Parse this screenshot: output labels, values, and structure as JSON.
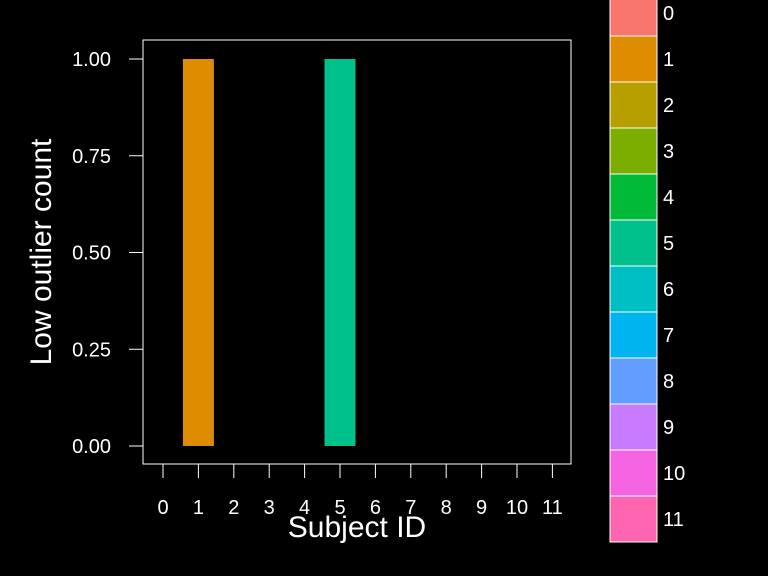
{
  "chart_data": {
    "type": "bar",
    "xlabel": "Subject ID",
    "ylabel": "Low outlier count",
    "categories": [
      "0",
      "1",
      "2",
      "3",
      "4",
      "5",
      "6",
      "7",
      "8",
      "9",
      "10",
      "11"
    ],
    "values": [
      0,
      1,
      0,
      0,
      0,
      1,
      0,
      0,
      0,
      0,
      0,
      0
    ],
    "ylim": [
      0,
      1
    ],
    "y_ticks": [
      "0.00",
      "0.25",
      "0.50",
      "0.75",
      "1.00"
    ],
    "grid": false,
    "legend_position": "right",
    "legend": [
      {
        "label": "0",
        "color": "#F8766D"
      },
      {
        "label": "1",
        "color": "#DE8C00"
      },
      {
        "label": "2",
        "color": "#B79F00"
      },
      {
        "label": "3",
        "color": "#7CAE00"
      },
      {
        "label": "4",
        "color": "#00BA38"
      },
      {
        "label": "5",
        "color": "#00C08B"
      },
      {
        "label": "6",
        "color": "#00BFC4"
      },
      {
        "label": "7",
        "color": "#00B4F0"
      },
      {
        "label": "8",
        "color": "#619CFF"
      },
      {
        "label": "9",
        "color": "#C77CFF"
      },
      {
        "label": "10",
        "color": "#F564E3"
      },
      {
        "label": "11",
        "color": "#FF64B0"
      }
    ],
    "background_color": "#000000",
    "foreground_color": "#FFFFFF"
  }
}
